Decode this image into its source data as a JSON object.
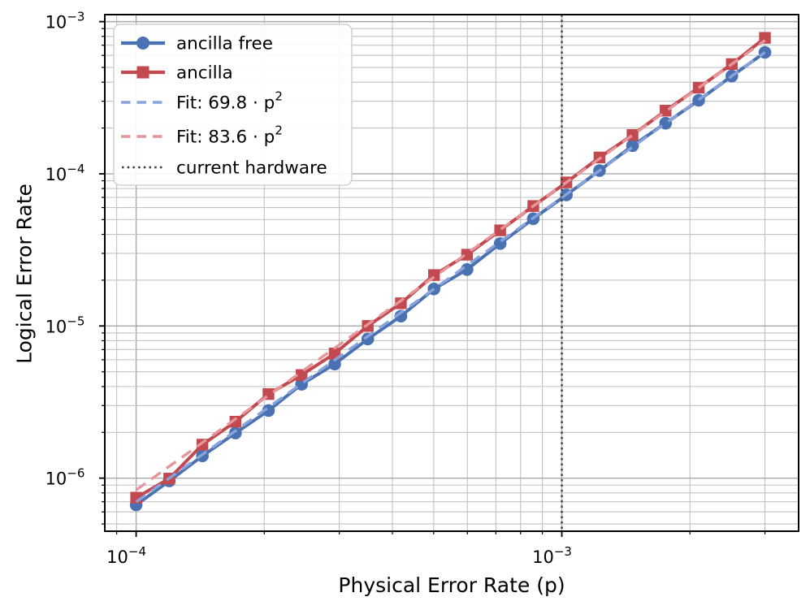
{
  "chart_data": {
    "type": "line",
    "title": "",
    "xlabel": "Physical Error Rate (p)",
    "ylabel": "Logical Error Rate",
    "x_scale": "log",
    "y_scale": "log",
    "xlim": [
      8.44e-05,
      0.0036
    ],
    "ylim": [
      4.48e-07,
      0.001112
    ],
    "grid": "both",
    "legend_position": "upper left",
    "x_major_tick_exponents": [
      -4,
      -3
    ],
    "y_major_tick_exponents": [
      -3,
      -4,
      -5,
      -6
    ],
    "x": [
      0.0001,
      0.0001196,
      0.0001431,
      0.0001711,
      0.0002046,
      0.0002447,
      0.0002927,
      0.0003501,
      0.0004187,
      0.0005008,
      0.000599,
      0.0007164,
      0.0008569,
      0.001025,
      0.001226,
      0.001466,
      0.001753,
      0.002097,
      0.002508,
      0.003
    ],
    "series": [
      {
        "name": "ancilla free",
        "color": "#4a72b2",
        "marker": "circle",
        "values": [
          6.67e-07,
          9.59e-07,
          1.4e-06,
          1.98e-06,
          2.78e-06,
          4.14e-06,
          5.62e-06,
          8.21e-06,
          1.16e-05,
          1.75e-05,
          2.35e-05,
          3.48e-05,
          5.07e-05,
          7.26e-05,
          0.000105,
          0.000153,
          0.000215,
          0.000304,
          0.000439,
          0.000628
        ]
      },
      {
        "name": "ancilla",
        "color": "#c2494f",
        "marker": "square",
        "values": [
          7.44e-07,
          9.93e-07,
          1.66e-06,
          2.35e-06,
          3.57e-06,
          4.76e-06,
          6.59e-06,
          1e-05,
          1.41e-05,
          2.16e-05,
          2.94e-05,
          4.25e-05,
          6.14e-05,
          8.78e-05,
          0.000128,
          0.00018,
          0.00026,
          0.000368,
          0.000526,
          0.000782
        ]
      }
    ],
    "fits": [
      {
        "label": "Fit: 69.8 · p^2",
        "coefficient": 69.8,
        "exponent": 2,
        "color": "#88a3dc"
      },
      {
        "label": "Fit: 83.6 · p^2",
        "coefficient": 83.6,
        "exponent": 2,
        "color": "#e6959b"
      }
    ],
    "vline": {
      "label": "current hardware",
      "x": 0.001,
      "color": "#3d3d3d",
      "style": "dotted"
    }
  },
  "figure": {
    "xlabel": "Physical Error Rate (p)",
    "ylabel": "Logical Error Rate"
  },
  "colors": {
    "series_blue": "#4a72b2",
    "series_red": "#c2494f",
    "fit_blue": "#88a3dc",
    "fit_red": "#e6959b",
    "grid_major": "#a8a8a8",
    "grid_minor": "#c2c2c2",
    "vline": "#3d3d3d",
    "spine": "#000000",
    "legend_border": "#d0d0d0"
  }
}
